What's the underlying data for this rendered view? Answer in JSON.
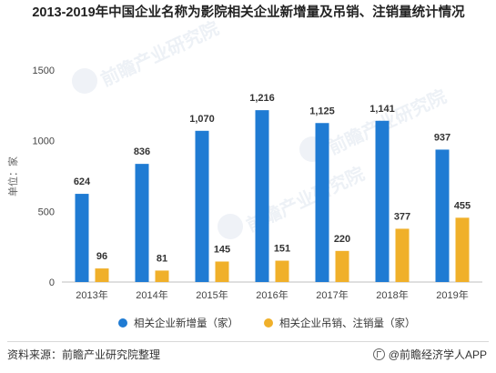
{
  "chart_data": {
    "type": "bar",
    "title": "2013-2019年中国企业名称为影院相关企业新增量及吊销、注销量统计情况",
    "ylabel": "单位：家",
    "xlabel": "",
    "categories": [
      "2013年",
      "2014年",
      "2015年",
      "2016年",
      "2017年",
      "2018年",
      "2019年"
    ],
    "series": [
      {
        "name": "相关企业新增量（家）",
        "values": [
          624,
          836,
          1070,
          1216,
          1125,
          1141,
          937
        ],
        "labels": [
          "624",
          "836",
          "1,070",
          "1,216",
          "1,125",
          "1,141",
          "937"
        ],
        "color": "#1f7bd3"
      },
      {
        "name": "相关企业吊销、注销量（家）",
        "values": [
          96,
          81,
          145,
          151,
          220,
          377,
          455
        ],
        "labels": [
          "96",
          "81",
          "145",
          "151",
          "220",
          "377",
          "455"
        ],
        "color": "#f0b02a"
      }
    ],
    "ylim": [
      0,
      1500
    ],
    "yticks": [
      "0",
      "500",
      "1000",
      "1500"
    ],
    "grid": false,
    "legend_position": "bottom"
  },
  "footer": {
    "source": "资料来源：前瞻产业研究院整理",
    "brand": "@前瞻经济学人APP"
  },
  "watermark": {
    "text": "前瞻产业研究院"
  }
}
